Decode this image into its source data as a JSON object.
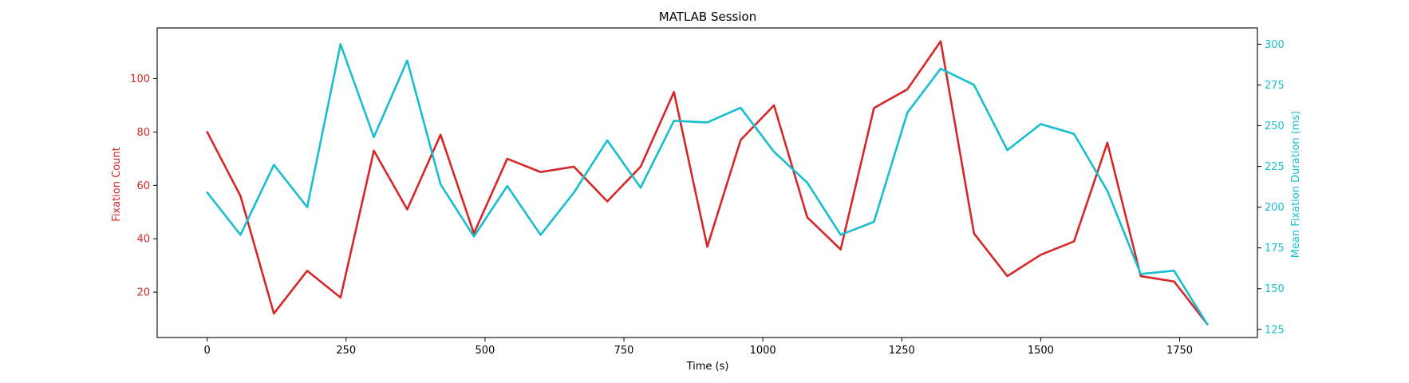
{
  "chart_data": {
    "type": "line",
    "title": "MATLAB Session",
    "xlabel": "Time (s)",
    "ylabel_left": "Fixation Count",
    "ylabel_right": "Mean Fixation Duration (ms)",
    "xlim": [
      -90,
      1890
    ],
    "ylim_left": [
      3,
      119
    ],
    "ylim_right": [
      120,
      310
    ],
    "x_ticks": [
      0,
      250,
      500,
      750,
      1000,
      1250,
      1500,
      1750
    ],
    "y_left_ticks": [
      20,
      40,
      60,
      80,
      100
    ],
    "y_right_ticks": [
      125,
      150,
      175,
      200,
      225,
      250,
      275,
      300
    ],
    "grid": false,
    "colors": {
      "left": "#d62728",
      "right": "#17becf"
    },
    "x": [
      0,
      60,
      120,
      180,
      240,
      300,
      360,
      420,
      480,
      540,
      600,
      660,
      720,
      780,
      840,
      900,
      960,
      1020,
      1080,
      1140,
      1200,
      1260,
      1320,
      1380,
      1440,
      1500,
      1560,
      1620,
      1680,
      1740,
      1800
    ],
    "series": [
      {
        "axis": "left",
        "values": [
          80,
          56,
          12,
          28,
          18,
          73,
          51,
          79,
          42,
          70,
          65,
          67,
          54,
          67,
          95,
          37,
          77,
          90,
          48,
          36,
          89,
          96,
          114,
          42,
          26,
          34,
          39,
          76,
          26,
          24,
          8
        ]
      },
      {
        "axis": "right",
        "values": [
          209,
          183,
          226,
          200,
          300,
          243,
          290,
          214,
          182,
          213,
          183,
          209,
          241,
          212,
          253,
          252,
          261,
          234,
          215,
          183,
          191,
          258,
          285,
          275,
          235,
          251,
          245,
          210,
          159,
          161,
          128
        ]
      }
    ]
  }
}
